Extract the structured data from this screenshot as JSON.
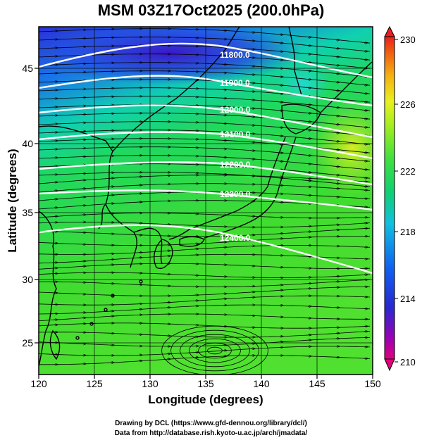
{
  "title": "MSM 03Z17Oct2025 (200.0hPa)",
  "axes": {
    "xlabel": "Longitude (degrees)",
    "ylabel": "Latitude  (degrees)",
    "x_ticks": [
      "120",
      "125",
      "130",
      "135",
      "140",
      "145",
      "150"
    ],
    "y_ticks": [
      "25",
      "30",
      "35",
      "40",
      "45"
    ]
  },
  "colorbar": {
    "ticks": [
      "230",
      "226",
      "222",
      "218",
      "214",
      "210"
    ],
    "colors": [
      "#e8005a",
      "#9b00b8",
      "#2a2adc",
      "#1070f0",
      "#10c8d8",
      "#10d070",
      "#40e040",
      "#a0ee20",
      "#e8f020",
      "#f4b010",
      "#f06010",
      "#e82020"
    ]
  },
  "contours": [
    {
      "label": "11800.0"
    },
    {
      "label": "11900.0"
    },
    {
      "label": "12000.0"
    },
    {
      "label": "12100.0"
    },
    {
      "label": "12200.0"
    },
    {
      "label": "12300.0"
    },
    {
      "label": "12400.0"
    }
  ],
  "credits": {
    "line1": "Drawing by DCL (https://www.gfd-dennou.org/library/dcl/)",
    "line2": "Data from http://database.rish.kyoto-u.ac.jp/arch/jmadata/"
  }
}
